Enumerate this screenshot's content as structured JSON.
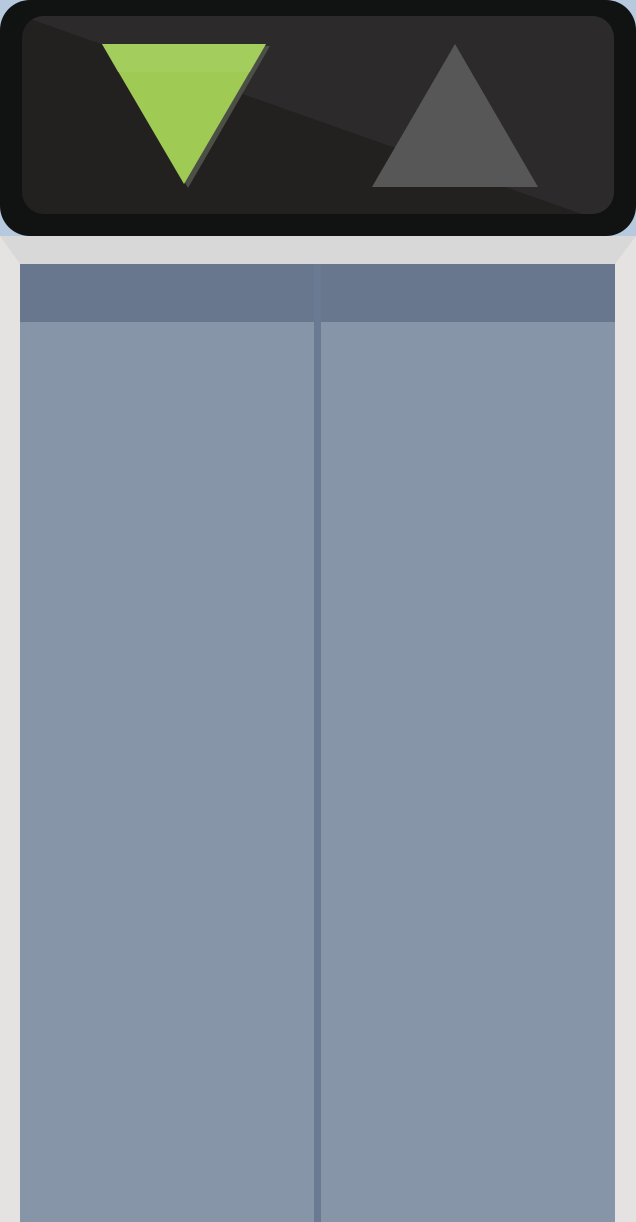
{
  "icons": {
    "down_arrow": "down-arrow-icon",
    "up_arrow": "up-arrow-icon"
  },
  "indicator": {
    "down_active": true,
    "up_active": false
  },
  "colors": {
    "active_arrow": "#9fcb55",
    "inactive_arrow": "#575757",
    "panel": "#111312",
    "screen": "#222120",
    "frame": "#e4e3e1",
    "door": "#8795a9",
    "door_header": "#68768e",
    "background": "#b7c9de"
  }
}
